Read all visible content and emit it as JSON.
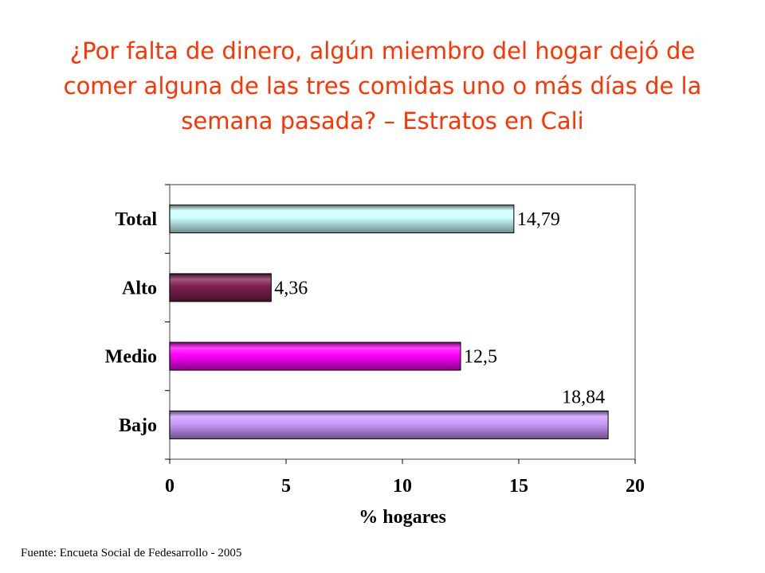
{
  "title_lines": [
    "¿Por falta de dinero, algún miembro del hogar dejó de",
    "comer alguna de las tres comidas uno o más días de la",
    "semana pasada? – Estratos en Cali"
  ],
  "source": "Fuente:  Encueta Social de Fedesarrollo - 2005",
  "chart_data": {
    "type": "bar",
    "orientation": "horizontal",
    "categories": [
      "Total",
      "Alto",
      "Medio",
      "Bajo"
    ],
    "values": [
      14.79,
      4.36,
      12.5,
      18.84
    ],
    "value_labels": [
      "14,79",
      "4,36",
      "12,5",
      "18,84"
    ],
    "colors": [
      "#ccffff",
      "#802050",
      "#ff00ff",
      "#cc99ff"
    ],
    "xlabel": "% hogares",
    "ylabel": "",
    "xlim": [
      0,
      20
    ],
    "xticks": [
      0,
      5,
      10,
      15,
      20
    ],
    "grid": false,
    "legend": "none"
  }
}
